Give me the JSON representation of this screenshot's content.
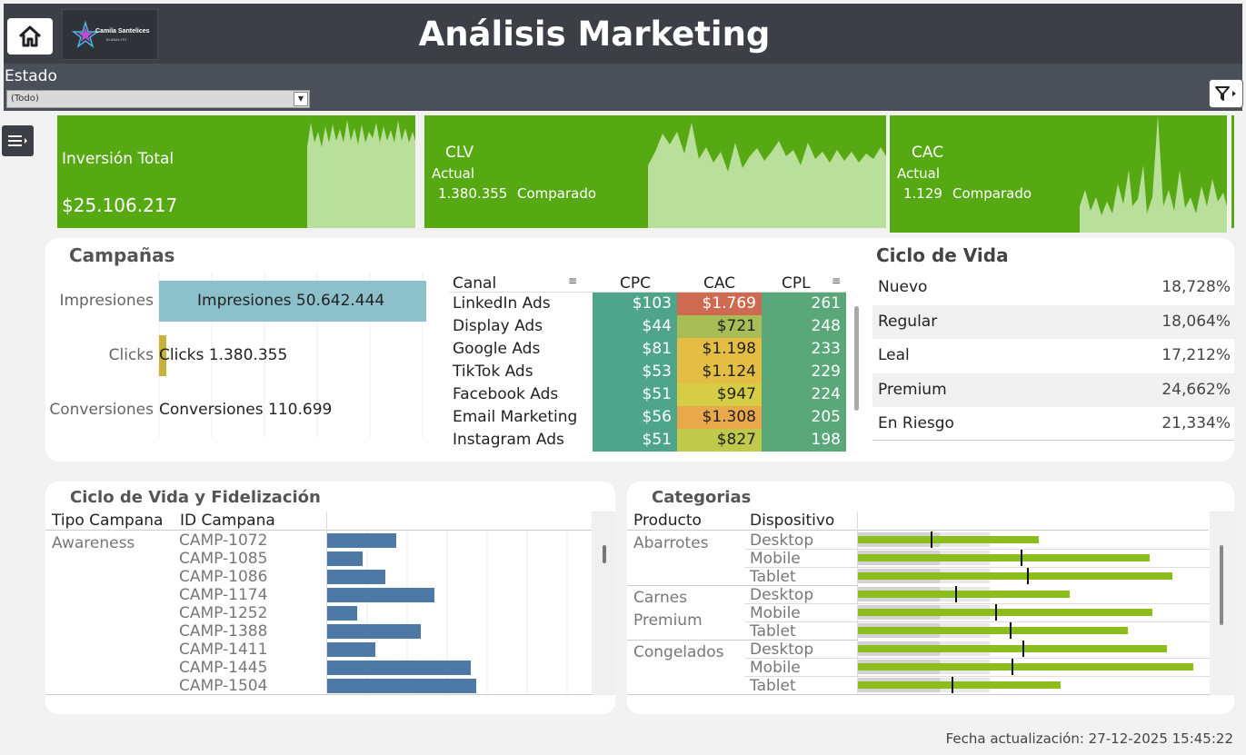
{
  "header": {
    "title": "Análisis Marketing",
    "logo_text": "Camila Santelices",
    "logo_sub": "BI ANALYST"
  },
  "filter": {
    "label": "Estado",
    "value": "(Todo)"
  },
  "kpis": {
    "inversion": {
      "title": "Inversión Total",
      "value": "$25.106.217"
    },
    "clv": {
      "title": "CLV",
      "sub": "Actual",
      "value": "1.380.355",
      "compare": "Comparado"
    },
    "cac": {
      "title": "CAC",
      "sub": "Actual",
      "value": "1.129",
      "compare": "Comparado"
    }
  },
  "campanas": {
    "title": "Campañas",
    "funnel": [
      {
        "label": "Impresiones",
        "bar_label": "Impresiones 50.642.444",
        "value": 50642444
      },
      {
        "label": "Clicks",
        "bar_label": "Clicks 1.380.355",
        "value": 1380355
      },
      {
        "label": "Conversiones",
        "bar_label": "Conversiones 110.699",
        "value": 110699
      }
    ],
    "table": {
      "headers": [
        "Canal",
        "CPC",
        "CAC",
        "CPL"
      ],
      "rows": [
        {
          "canal": "LinkedIn Ads",
          "cpc": "$103",
          "cac": "$1.769",
          "cpl": "261"
        },
        {
          "canal": "Display Ads",
          "cpc": "$44",
          "cac": "$721",
          "cpl": "248"
        },
        {
          "canal": "Google Ads",
          "cpc": "$81",
          "cac": "$1.198",
          "cpl": "233"
        },
        {
          "canal": "TikTok Ads",
          "cpc": "$53",
          "cac": "$1.124",
          "cpl": "229"
        },
        {
          "canal": "Facebook Ads",
          "cpc": "$51",
          "cac": "$947",
          "cpl": "224"
        },
        {
          "canal": "Email Marketing",
          "cpc": "$56",
          "cac": "$1.308",
          "cpl": "205"
        },
        {
          "canal": "Instagram Ads",
          "cpc": "$51",
          "cac": "$827",
          "cpl": "198"
        }
      ]
    }
  },
  "ciclo_vida": {
    "title": "Ciclo de Vida",
    "rows": [
      {
        "name": "Nuevo",
        "value": "18,728%"
      },
      {
        "name": "Regular",
        "value": "18,064%"
      },
      {
        "name": "Leal",
        "value": "17,212%"
      },
      {
        "name": "Premium",
        "value": "24,662%"
      },
      {
        "name": "En Riesgo",
        "value": "21,334%"
      }
    ]
  },
  "fidelizacion": {
    "title": "Ciclo de Vida y Fidelización",
    "headers": [
      "Tipo Campana",
      "ID Campana"
    ],
    "tipo": "Awareness",
    "rows": [
      {
        "id": "CAMP-1072",
        "value": 76
      },
      {
        "id": "CAMP-1085",
        "value": 39
      },
      {
        "id": "CAMP-1086",
        "value": 64
      },
      {
        "id": "CAMP-1174",
        "value": 118
      },
      {
        "id": "CAMP-1252",
        "value": 33
      },
      {
        "id": "CAMP-1388",
        "value": 103
      },
      {
        "id": "CAMP-1411",
        "value": 53
      },
      {
        "id": "CAMP-1445",
        "value": 158
      },
      {
        "id": "CAMP-1504",
        "value": 164
      }
    ]
  },
  "categorias": {
    "title": "Categorias",
    "headers": [
      "Producto",
      "Dispositivo"
    ],
    "groups": [
      {
        "producto": "Abarrotes",
        "rows": [
          {
            "disp": "Desktop",
            "value": 199,
            "target": 80
          },
          {
            "disp": "Mobile",
            "value": 321,
            "target": 179
          },
          {
            "disp": "Tablet",
            "value": 346,
            "target": 186
          }
        ]
      },
      {
        "producto": "Carnes Premium",
        "rows": [
          {
            "disp": "Desktop",
            "value": 233,
            "target": 107
          },
          {
            "disp": "Mobile",
            "value": 324,
            "target": 151
          },
          {
            "disp": "Tablet",
            "value": 297,
            "target": 167
          }
        ]
      },
      {
        "producto": "Congelados",
        "rows": [
          {
            "disp": "Desktop",
            "value": 340,
            "target": 181
          },
          {
            "disp": "Mobile",
            "value": 369,
            "target": 169
          },
          {
            "disp": "Tablet",
            "value": 223,
            "target": 103
          }
        ]
      }
    ]
  },
  "footer": {
    "updated": "Fecha actualización: 27-12-2025 15:45:22"
  }
}
